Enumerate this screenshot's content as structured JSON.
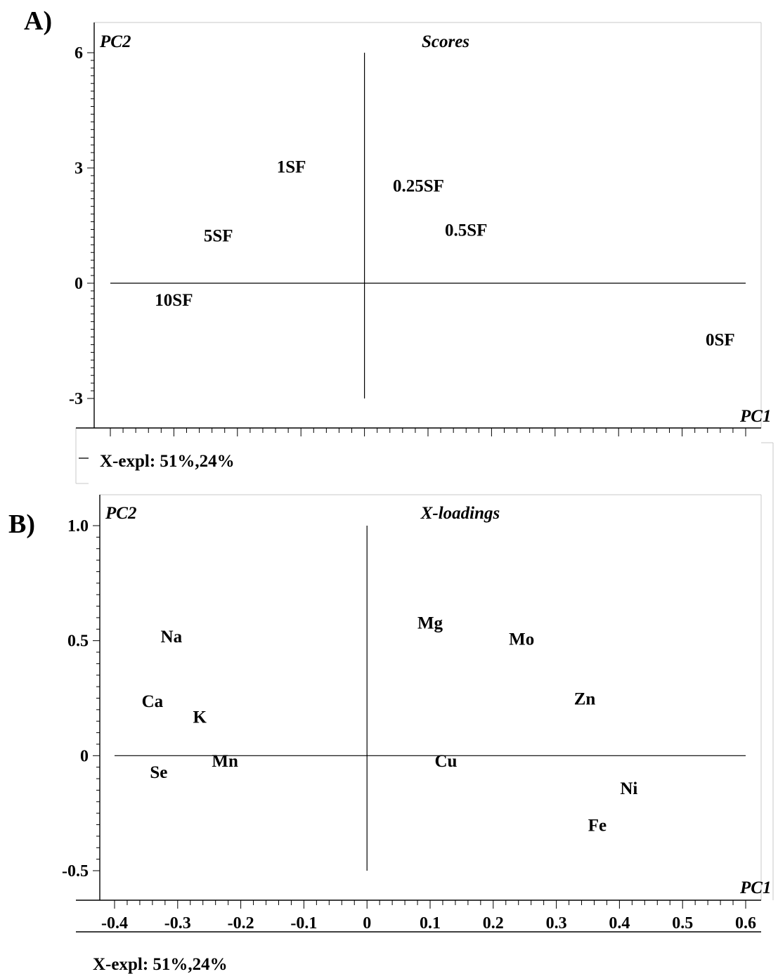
{
  "chart_data": [
    {
      "type": "scatter",
      "panel_label": "A)",
      "title": "Scores",
      "xlabel": "PC1",
      "ylabel": "PC2",
      "explained": "X-expl: 51%,24%",
      "yticks": [
        "6",
        "3",
        "0",
        "-3"
      ],
      "ytick_values": [
        6,
        3,
        0,
        -3
      ],
      "xlim": [
        -0.4,
        0.6
      ],
      "ylim": [
        -3,
        6
      ],
      "points": [
        {
          "label": "1SF",
          "x": -0.115,
          "y": 3.05
        },
        {
          "label": "0.25SF",
          "x": 0.085,
          "y": 2.55
        },
        {
          "label": "5SF",
          "x": -0.23,
          "y": 1.25
        },
        {
          "label": "0.5SF",
          "x": 0.16,
          "y": 1.4
        },
        {
          "label": "10SF",
          "x": -0.3,
          "y": -0.42
        },
        {
          "label": "0SF",
          "x": 0.56,
          "y": -1.45
        }
      ]
    },
    {
      "type": "scatter",
      "panel_label": "B)",
      "title": "X-loadings",
      "xlabel": "PC1",
      "ylabel": "PC2",
      "explained": "X-expl: 51%,24%",
      "xticks": [
        "-0.4",
        "-0.3",
        "-0.2",
        "-0.1",
        "0",
        "0.1",
        "0.2",
        "0.3",
        "0.4",
        "0.5",
        "0.6"
      ],
      "xtick_values": [
        -0.4,
        -0.3,
        -0.2,
        -0.1,
        0,
        0.1,
        0.2,
        0.3,
        0.4,
        0.5,
        0.6
      ],
      "yticks": [
        "1.0",
        "0.5",
        "0",
        "-0.5"
      ],
      "ytick_values": [
        1.0,
        0.5,
        0,
        -0.5
      ],
      "xlim": [
        -0.4,
        0.6
      ],
      "ylim": [
        -0.5,
        1.0
      ],
      "points": [
        {
          "label": "Na",
          "x": -0.31,
          "y": 0.52
        },
        {
          "label": "Ca",
          "x": -0.34,
          "y": 0.24
        },
        {
          "label": "K",
          "x": -0.265,
          "y": 0.17
        },
        {
          "label": "Mn",
          "x": -0.225,
          "y": -0.02
        },
        {
          "label": "Se",
          "x": -0.33,
          "y": -0.07
        },
        {
          "label": "Mg",
          "x": 0.1,
          "y": 0.58
        },
        {
          "label": "Mo",
          "x": 0.245,
          "y": 0.51
        },
        {
          "label": "Zn",
          "x": 0.345,
          "y": 0.25
        },
        {
          "label": "Cu",
          "x": 0.125,
          "y": -0.02
        },
        {
          "label": "Ni",
          "x": 0.415,
          "y": -0.14
        },
        {
          "label": "Fe",
          "x": 0.365,
          "y": -0.3
        }
      ]
    }
  ]
}
